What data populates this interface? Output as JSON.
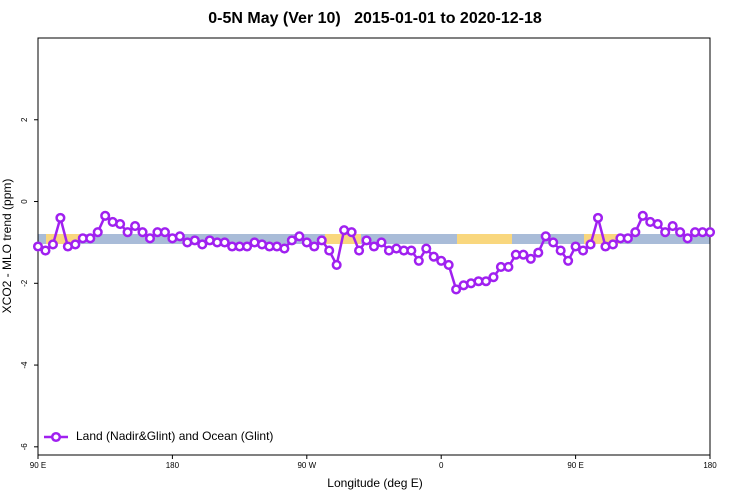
{
  "chart_data": {
    "type": "line",
    "title": "0-5N May (Ver 10)   2015-01-01 to 2020-12-18",
    "xlabel": "Longitude (deg E)",
    "ylabel": "XCO2 - MLO trend (ppm)",
    "xlim": [
      90,
      540
    ],
    "ylim": [
      -6.2,
      4.0
    ],
    "xticks": [
      {
        "value": 90,
        "label": "90 E"
      },
      180,
      {
        "value": 270,
        "label": "90 W"
      },
      {
        "value": 360,
        "label": "0"
      },
      {
        "value": 450,
        "label": "90 E"
      },
      {
        "value": 540,
        "label": "180"
      }
    ],
    "yticks": [
      -6,
      -4,
      -2,
      0,
      2
    ],
    "legend": "bottom-left",
    "x": [
      90,
      95,
      100,
      105,
      110,
      115,
      120,
      125,
      130,
      135,
      140,
      145,
      150,
      155,
      160,
      165,
      170,
      175,
      180,
      185,
      190,
      195,
      200,
      205,
      210,
      215,
      220,
      225,
      230,
      235,
      240,
      245,
      250,
      255,
      260,
      265,
      270,
      275,
      280,
      285,
      290,
      295,
      300,
      305,
      310,
      315,
      320,
      325,
      330,
      335,
      340,
      345,
      350,
      355,
      360,
      365,
      370,
      375,
      380,
      385,
      390,
      395,
      400,
      405,
      410,
      415,
      420,
      425,
      430,
      435,
      440,
      445,
      450,
      455,
      460,
      465,
      470,
      475,
      480,
      485,
      490,
      495,
      500,
      505,
      510,
      515,
      520,
      525,
      530,
      535,
      540
    ],
    "series": [
      {
        "name": "Land (Nadir&Glint) and Ocean (Glint)",
        "color": "#a020f0",
        "values": [
          -1.1,
          -1.2,
          -1.05,
          -0.4,
          -1.1,
          -1.05,
          -0.9,
          -0.9,
          -0.75,
          -0.35,
          -0.5,
          -0.55,
          -0.75,
          -0.6,
          -0.75,
          -0.9,
          -0.75,
          -0.75,
          -0.9,
          -0.85,
          -1.0,
          -0.95,
          -1.05,
          -0.95,
          -1.0,
          -1.0,
          -1.1,
          -1.1,
          -1.1,
          -1.0,
          -1.05,
          -1.1,
          -1.1,
          -1.15,
          -0.95,
          -0.85,
          -1.0,
          -1.1,
          -0.95,
          -1.2,
          -1.55,
          -0.7,
          -0.75,
          -1.2,
          -0.95,
          -1.1,
          -1.0,
          -1.2,
          -1.15,
          -1.2,
          -1.2,
          -1.45,
          -1.15,
          -1.35,
          -1.45,
          -1.55,
          -2.15,
          -2.05,
          -2.0,
          -1.95,
          -1.95,
          -1.85,
          -1.6,
          -1.6,
          -1.3,
          -1.3,
          -1.4,
          -1.25,
          -0.85,
          -1.0,
          -1.2,
          -1.45,
          -1.1,
          -1.2,
          -1.05,
          -0.4,
          -1.1,
          -1.05,
          -0.9,
          -0.9,
          -0.75,
          -0.35,
          -0.5,
          -0.55,
          -0.75,
          -0.6,
          -0.75,
          -0.9,
          -0.75,
          -0.75,
          -0.75
        ]
      }
    ]
  }
}
